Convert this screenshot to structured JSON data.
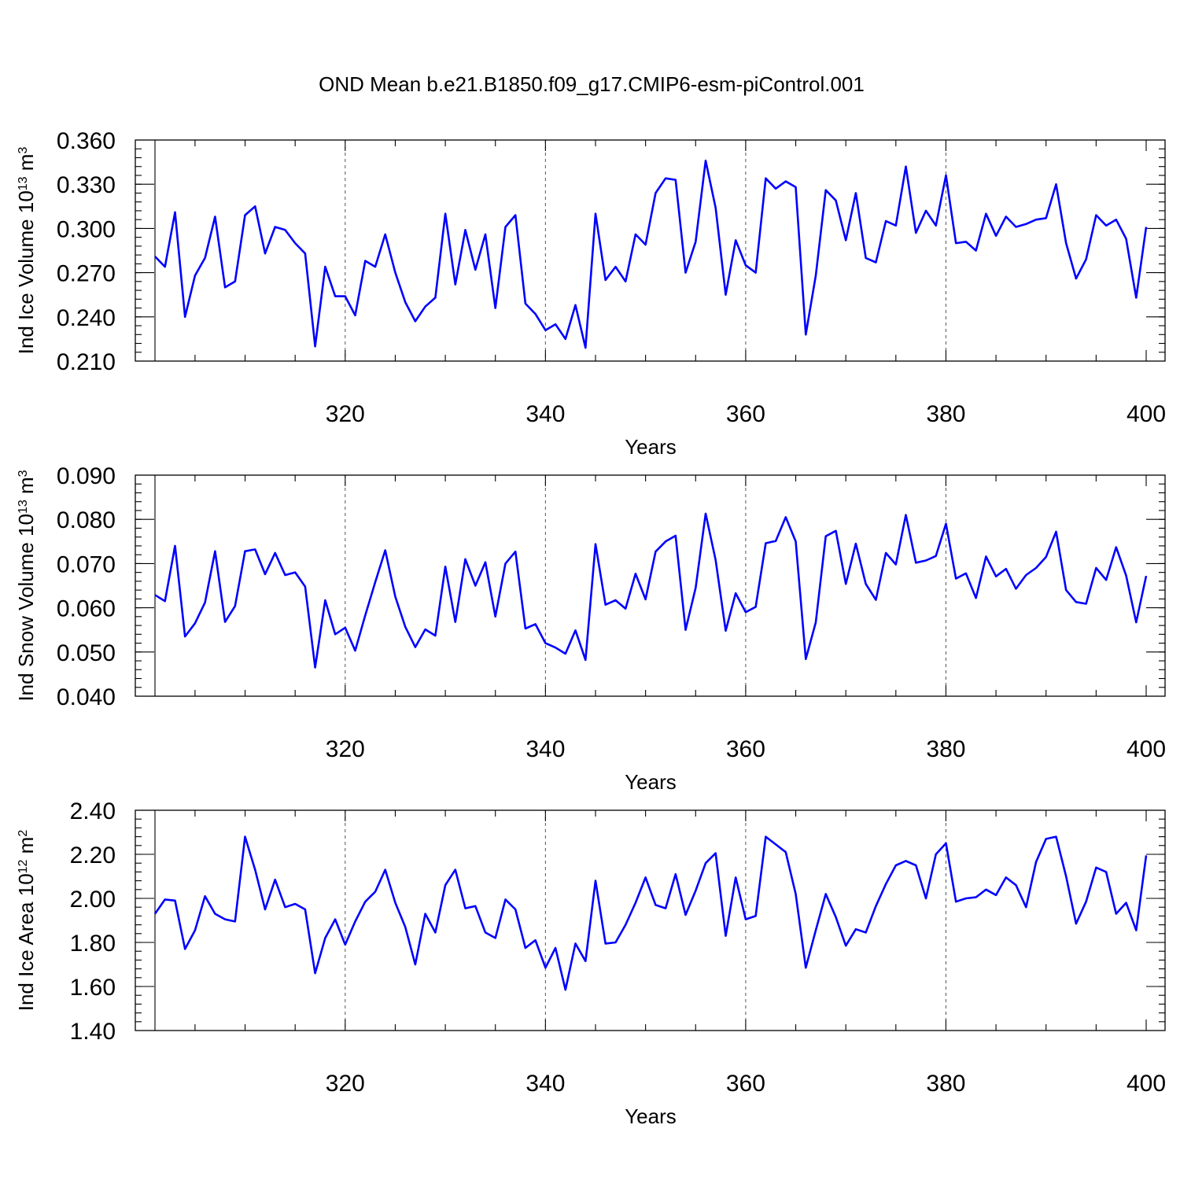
{
  "title": "OND Mean b.e21.B1850.f09_g17.CMIP6-esm-piControl.001",
  "colors": {
    "series": "#0000ff",
    "axis": "#000000",
    "grid": "#555555"
  },
  "chart_data": [
    {
      "type": "line",
      "name": "ice-volume",
      "xlabel": "Years",
      "ylabel": "Ind Ice Volume 10",
      "ylabel_sup": "13",
      "ylabel_unit": " m",
      "ylabel_unit_sup": "3",
      "xlim": [
        301,
        400
      ],
      "ylim": [
        0.21,
        0.36
      ],
      "xticks": [
        320,
        340,
        360,
        380,
        400
      ],
      "xtick_labels": [
        "320",
        "340",
        "360",
        "380",
        "400"
      ],
      "yticks": [
        0.21,
        0.24,
        0.27,
        0.3,
        0.33,
        0.36
      ],
      "ytick_labels": [
        "0.210",
        "0.240",
        "0.270",
        "0.300",
        "0.330",
        "0.360"
      ],
      "y_minor_step": 0.006,
      "grid": "vertical dashed at major x ticks",
      "x_start": 301,
      "values": [
        0.281,
        0.274,
        0.311,
        0.24,
        0.268,
        0.28,
        0.308,
        0.26,
        0.264,
        0.309,
        0.315,
        0.283,
        0.301,
        0.299,
        0.29,
        0.283,
        0.22,
        0.274,
        0.254,
        0.254,
        0.241,
        0.278,
        0.274,
        0.296,
        0.27,
        0.25,
        0.237,
        0.247,
        0.253,
        0.31,
        0.262,
        0.299,
        0.272,
        0.296,
        0.246,
        0.301,
        0.309,
        0.249,
        0.242,
        0.231,
        0.235,
        0.225,
        0.248,
        0.219,
        0.31,
        0.265,
        0.274,
        0.264,
        0.296,
        0.289,
        0.324,
        0.334,
        0.333,
        0.27,
        0.291,
        0.346,
        0.314,
        0.255,
        0.292,
        0.275,
        0.27,
        0.334,
        0.327,
        0.332,
        0.328,
        0.228,
        0.268,
        0.326,
        0.319,
        0.292,
        0.324,
        0.28,
        0.277,
        0.305,
        0.302,
        0.342,
        0.297,
        0.312,
        0.302,
        0.336,
        0.29,
        0.291,
        0.285,
        0.31,
        0.295,
        0.308,
        0.301,
        0.303,
        0.306,
        0.307,
        0.33,
        0.29,
        0.266,
        0.279,
        0.309,
        0.302,
        0.306,
        0.293,
        0.253,
        0.301
      ]
    },
    {
      "type": "line",
      "name": "snow-volume",
      "xlabel": "Years",
      "ylabel": "Ind Snow Volume 10",
      "ylabel_sup": "13",
      "ylabel_unit": " m",
      "ylabel_unit_sup": "3",
      "xlim": [
        301,
        400
      ],
      "ylim": [
        0.04,
        0.09
      ],
      "xticks": [
        320,
        340,
        360,
        380,
        400
      ],
      "xtick_labels": [
        "320",
        "340",
        "360",
        "380",
        "400"
      ],
      "yticks": [
        0.04,
        0.05,
        0.06,
        0.07,
        0.08,
        0.09
      ],
      "ytick_labels": [
        "0.040",
        "0.050",
        "0.060",
        "0.070",
        "0.080",
        "0.090"
      ],
      "y_minor_step": 0.002,
      "grid": "vertical dashed at major x ticks",
      "x_start": 301,
      "values": [
        0.0629,
        0.0615,
        0.074,
        0.0535,
        0.0565,
        0.0612,
        0.0728,
        0.0568,
        0.0604,
        0.0728,
        0.0732,
        0.0676,
        0.0724,
        0.0674,
        0.068,
        0.0648,
        0.0465,
        0.0617,
        0.054,
        0.0555,
        0.0503,
        0.0583,
        0.0658,
        0.073,
        0.0625,
        0.0557,
        0.0511,
        0.0551,
        0.0537,
        0.0693,
        0.0568,
        0.071,
        0.065,
        0.0703,
        0.058,
        0.07,
        0.0727,
        0.0553,
        0.0563,
        0.052,
        0.051,
        0.0496,
        0.0549,
        0.0482,
        0.0744,
        0.0607,
        0.0617,
        0.0598,
        0.0677,
        0.0619,
        0.0727,
        0.075,
        0.0763,
        0.055,
        0.0645,
        0.0813,
        0.0708,
        0.0548,
        0.0633,
        0.059,
        0.0602,
        0.0746,
        0.0751,
        0.0805,
        0.075,
        0.0484,
        0.0567,
        0.0762,
        0.0774,
        0.0654,
        0.0745,
        0.0654,
        0.0618,
        0.0724,
        0.0698,
        0.081,
        0.0702,
        0.0707,
        0.0717,
        0.079,
        0.0666,
        0.0678,
        0.0622,
        0.0716,
        0.0671,
        0.0688,
        0.0643,
        0.0674,
        0.069,
        0.0715,
        0.0772,
        0.064,
        0.0613,
        0.0609,
        0.069,
        0.0663,
        0.0737,
        0.0673,
        0.0567,
        0.0672
      ]
    },
    {
      "type": "line",
      "name": "ice-area",
      "xlabel": "Years",
      "ylabel": "Ind Ice Area 10",
      "ylabel_sup": "12",
      "ylabel_unit": " m",
      "ylabel_unit_sup": "2",
      "xlim": [
        301,
        400
      ],
      "ylim": [
        1.4,
        2.4
      ],
      "xticks": [
        320,
        340,
        360,
        380,
        400
      ],
      "xtick_labels": [
        "320",
        "340",
        "360",
        "380",
        "400"
      ],
      "yticks": [
        1.4,
        1.6,
        1.8,
        2.0,
        2.2,
        2.4
      ],
      "ytick_labels": [
        "1.40",
        "1.60",
        "1.80",
        "2.00",
        "2.20",
        "2.40"
      ],
      "y_minor_step": 0.04,
      "grid": "vertical dashed at major x ticks",
      "x_start": 301,
      "values": [
        1.93,
        1.995,
        1.99,
        1.77,
        1.855,
        2.01,
        1.93,
        1.905,
        1.895,
        2.28,
        2.13,
        1.95,
        2.085,
        1.96,
        1.975,
        1.95,
        1.66,
        1.82,
        1.905,
        1.79,
        1.895,
        1.985,
        2.03,
        2.13,
        1.98,
        1.87,
        1.7,
        1.93,
        1.845,
        2.06,
        2.13,
        1.955,
        1.965,
        1.845,
        1.82,
        1.995,
        1.95,
        1.775,
        1.81,
        1.685,
        1.775,
        1.585,
        1.795,
        1.715,
        2.08,
        1.795,
        1.8,
        1.88,
        1.98,
        2.095,
        1.97,
        1.955,
        2.11,
        1.925,
        2.035,
        2.16,
        2.205,
        1.83,
        2.095,
        1.905,
        1.92,
        2.28,
        2.245,
        2.21,
        2.02,
        1.685,
        1.855,
        2.02,
        1.915,
        1.785,
        1.86,
        1.845,
        1.965,
        2.065,
        2.15,
        2.17,
        2.15,
        2.0,
        2.2,
        2.25,
        1.985,
        2.0,
        2.005,
        2.04,
        2.015,
        2.095,
        2.06,
        1.96,
        2.165,
        2.27,
        2.28,
        2.1,
        1.885,
        1.985,
        2.14,
        2.12,
        1.93,
        1.98,
        1.855,
        2.195
      ]
    }
  ]
}
